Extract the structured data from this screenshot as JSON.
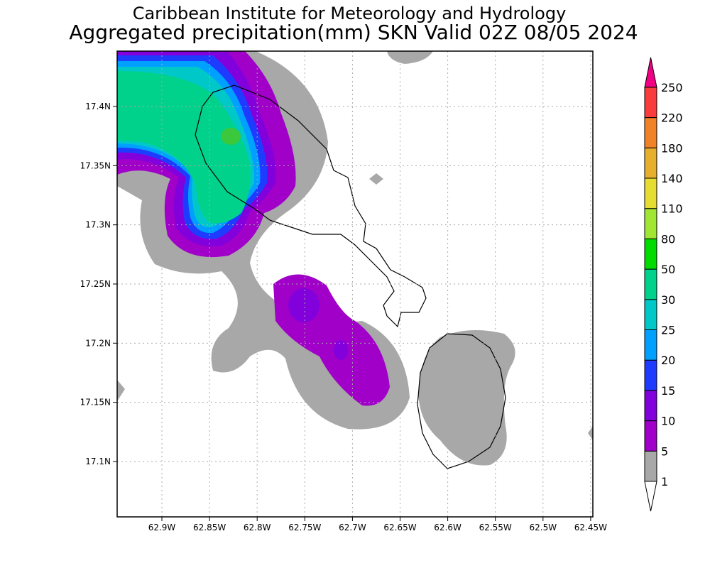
{
  "header": {
    "title": "Caribbean Institute for Meteorology and Hydrology",
    "subtitle": "Aggregated precipitation(mm) SKN Valid 02Z 08/05 2024"
  },
  "map": {
    "lat_ticks": [
      "17.4N",
      "17.35N",
      "17.3N",
      "17.25N",
      "17.2N",
      "17.15N",
      "17.1N"
    ],
    "lon_ticks": [
      "62.9W",
      "62.85W",
      "62.8W",
      "62.75W",
      "62.7W",
      "62.65W",
      "62.6W",
      "62.55W",
      "62.5W",
      "62.45W"
    ]
  },
  "colorbar": {
    "levels": [
      "1",
      "5",
      "10",
      "15",
      "20",
      "25",
      "30",
      "50",
      "80",
      "110",
      "140",
      "180",
      "220",
      "250"
    ],
    "colors": [
      "#a8a8a8",
      "#a000c8",
      "#8200dc",
      "#1e3cff",
      "#00a0ff",
      "#00c8c8",
      "#00d28c",
      "#00dc00",
      "#a0e632",
      "#e6dc32",
      "#e6af2d",
      "#f08228",
      "#fa3c3c",
      "#f00082"
    ]
  }
}
